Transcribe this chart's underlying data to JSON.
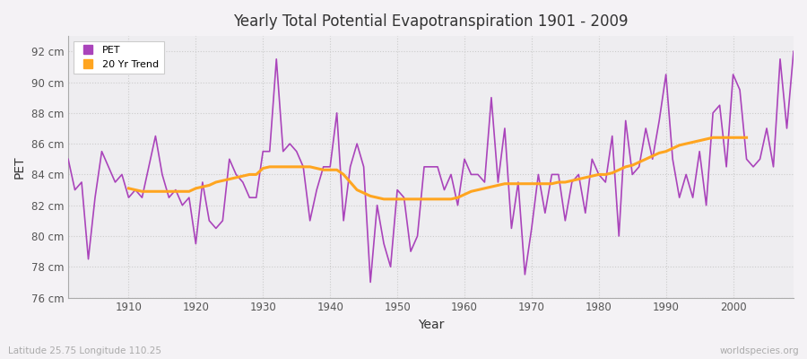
{
  "title": "Yearly Total Potential Evapotranspiration 1901 - 2009",
  "xlabel": "Year",
  "ylabel": "PET",
  "subtitle_left": "Latitude 25.75 Longitude 110.25",
  "subtitle_right": "worldspecies.org",
  "pet_color": "#AA44BB",
  "trend_color": "#FFA520",
  "bg_color": "#F4F2F5",
  "plot_bg_color": "#EEEDF0",
  "ylim": [
    76,
    93
  ],
  "xlim": [
    1901,
    2009
  ],
  "yticks": [
    76,
    78,
    80,
    82,
    84,
    86,
    88,
    90,
    92
  ],
  "xticks": [
    1910,
    1920,
    1930,
    1940,
    1950,
    1960,
    1970,
    1980,
    1990,
    2000
  ],
  "years": [
    1901,
    1902,
    1903,
    1904,
    1905,
    1906,
    1907,
    1908,
    1909,
    1910,
    1911,
    1912,
    1913,
    1914,
    1915,
    1916,
    1917,
    1918,
    1919,
    1920,
    1921,
    1922,
    1923,
    1924,
    1925,
    1926,
    1927,
    1928,
    1929,
    1930,
    1931,
    1932,
    1933,
    1934,
    1935,
    1936,
    1937,
    1938,
    1939,
    1940,
    1941,
    1942,
    1943,
    1944,
    1945,
    1946,
    1947,
    1948,
    1949,
    1950,
    1951,
    1952,
    1953,
    1954,
    1955,
    1956,
    1957,
    1958,
    1959,
    1960,
    1961,
    1962,
    1963,
    1964,
    1965,
    1966,
    1967,
    1968,
    1969,
    1970,
    1971,
    1972,
    1973,
    1974,
    1975,
    1976,
    1977,
    1978,
    1979,
    1980,
    1981,
    1982,
    1983,
    1984,
    1985,
    1986,
    1987,
    1988,
    1989,
    1990,
    1991,
    1992,
    1993,
    1994,
    1995,
    1996,
    1997,
    1998,
    1999,
    2000,
    2001,
    2002,
    2003,
    2004,
    2005,
    2006,
    2007,
    2008,
    2009
  ],
  "pet_values": [
    85.0,
    83.0,
    83.5,
    78.5,
    82.5,
    85.5,
    84.5,
    83.5,
    84.0,
    82.5,
    83.0,
    82.5,
    84.5,
    86.5,
    84.0,
    82.5,
    83.0,
    82.0,
    82.5,
    79.5,
    83.5,
    81.0,
    80.5,
    81.0,
    85.0,
    84.0,
    83.5,
    82.5,
    82.5,
    85.5,
    85.5,
    91.5,
    85.5,
    86.0,
    85.5,
    84.5,
    81.0,
    83.0,
    84.5,
    84.5,
    88.0,
    81.0,
    84.5,
    86.0,
    84.5,
    77.0,
    82.0,
    79.5,
    78.0,
    83.0,
    82.5,
    79.0,
    80.0,
    84.5,
    84.5,
    84.5,
    83.0,
    84.0,
    82.0,
    85.0,
    84.0,
    84.0,
    83.5,
    89.0,
    83.5,
    87.0,
    80.5,
    83.5,
    77.5,
    80.5,
    84.0,
    81.5,
    84.0,
    84.0,
    81.0,
    83.5,
    84.0,
    81.5,
    85.0,
    84.0,
    83.5,
    86.5,
    80.0,
    87.5,
    84.0,
    84.5,
    87.0,
    85.0,
    87.5,
    90.5,
    85.0,
    82.5,
    84.0,
    82.5,
    85.5,
    82.0,
    88.0,
    88.5,
    84.5,
    90.5,
    89.5,
    85.0,
    84.5,
    85.0,
    87.0,
    84.5,
    91.5,
    87.0,
    92.0
  ],
  "trend_values": [
    null,
    null,
    null,
    null,
    null,
    null,
    null,
    null,
    null,
    83.1,
    83.0,
    82.9,
    82.9,
    82.9,
    82.9,
    82.9,
    82.9,
    82.9,
    82.9,
    83.1,
    83.2,
    83.3,
    83.5,
    83.6,
    83.7,
    83.8,
    83.9,
    84.0,
    84.0,
    84.4,
    84.5,
    84.5,
    84.5,
    84.5,
    84.5,
    84.5,
    84.5,
    84.4,
    84.3,
    84.3,
    84.3,
    84.0,
    83.5,
    83.0,
    82.8,
    82.6,
    82.5,
    82.4,
    82.4,
    82.4,
    82.4,
    82.4,
    82.4,
    82.4,
    82.4,
    82.4,
    82.4,
    82.4,
    82.5,
    82.7,
    82.9,
    83.0,
    83.1,
    83.2,
    83.3,
    83.4,
    83.4,
    83.4,
    83.4,
    83.4,
    83.4,
    83.4,
    83.4,
    83.5,
    83.5,
    83.6,
    83.7,
    83.8,
    83.9,
    84.0,
    84.0,
    84.1,
    84.3,
    84.5,
    84.6,
    84.8,
    85.0,
    85.2,
    85.4,
    85.5,
    85.7,
    85.9,
    86.0,
    86.1,
    86.2,
    86.3,
    86.4,
    86.4,
    86.4,
    86.4,
    86.4,
    86.4,
    null,
    null,
    null,
    null,
    null,
    null,
    null,
    null,
    null,
    null
  ]
}
